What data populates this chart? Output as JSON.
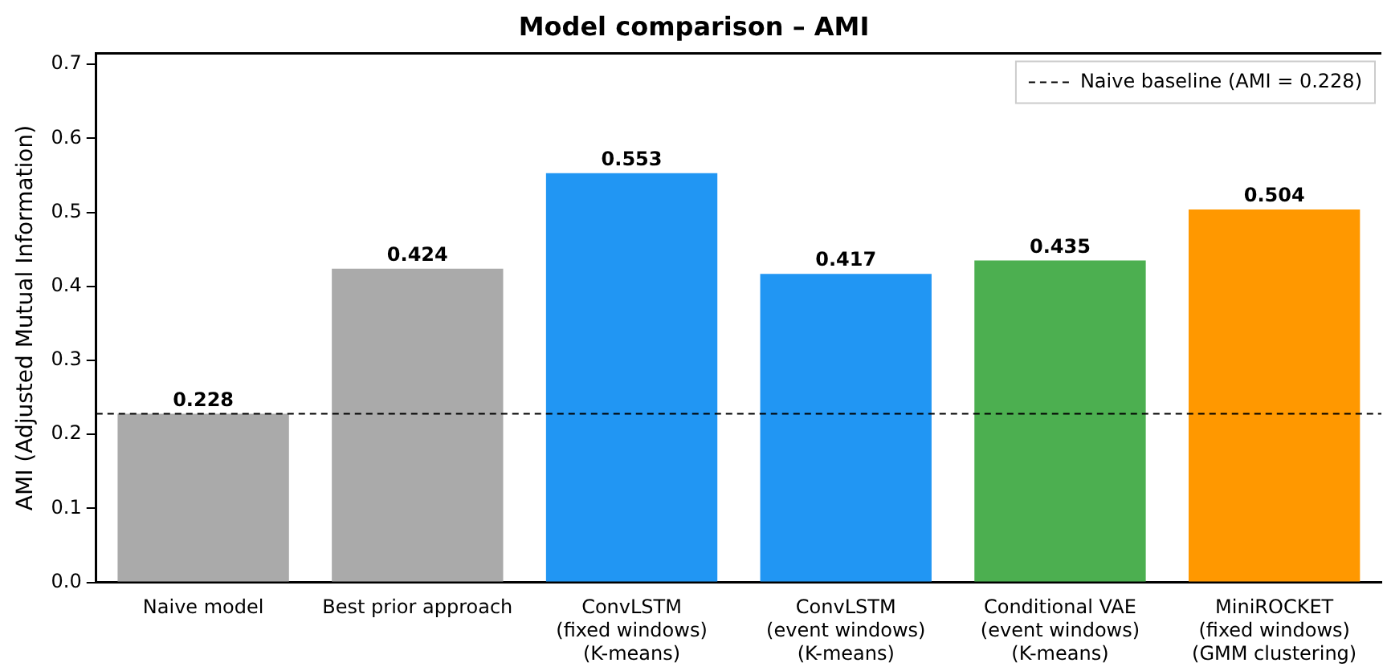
{
  "chart_data": {
    "type": "bar",
    "title": "Model comparison – AMI",
    "ylabel": "AMI (Adjusted Mutual Information)",
    "categories": [
      "Naive model",
      "Best prior approach",
      "ConvLSTM\n(fixed windows)\n(K-means)",
      "ConvLSTM\n(event windows)\n(K-means)",
      "Conditional VAE\n(event windows)\n(K-means)",
      "MiniROCKET\n(fixed windows)\n(GMM clustering)"
    ],
    "values": [
      0.228,
      0.424,
      0.553,
      0.417,
      0.435,
      0.504
    ],
    "colors": [
      "#aaaaaa",
      "#aaaaaa",
      "#2196f3",
      "#2196f3",
      "#4caf50",
      "#ff9800"
    ],
    "ylim": [
      0,
      0.715
    ],
    "yticks": [
      {
        "value": 0,
        "label": "0.0"
      },
      0.1,
      0.2,
      0.3,
      0.4,
      0.5,
      0.6,
      0.7
    ],
    "data_labels": true,
    "ref_lines": [
      {
        "axis": "y",
        "value": 0.228,
        "label": "Naive baseline (AMI = 0.228)",
        "color": "#000000",
        "line_style": "dashed"
      }
    ],
    "legend": "top right",
    "grid": false
  }
}
